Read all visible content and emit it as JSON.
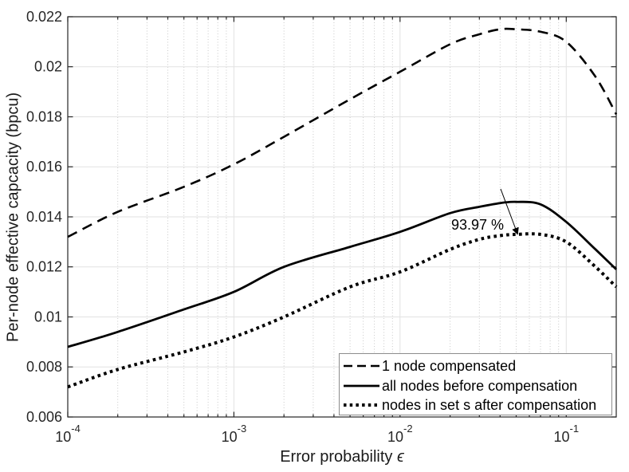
{
  "colors": {
    "curve": "#000000",
    "axis": "#262626",
    "grid_major": "#e2e2e2",
    "grid_minor": "#c9c9c9",
    "legend_border": "#8c8c8c",
    "background": "#ffffff",
    "text": "#262626"
  },
  "chart_data": {
    "type": "line",
    "title": "",
    "xlabel": "Error probability ϵ",
    "xlabel_text": "Error probability",
    "xlabel_symbol": "ϵ",
    "ylabel": "Per-node effective capcacity (bpcu)",
    "x_scale": "log",
    "xlim": [
      0.0001,
      0.2
    ],
    "ylim": [
      0.006,
      0.022
    ],
    "grid": {
      "major": true,
      "minor": true
    },
    "legend_position": "bottom-right",
    "y_ticks": [
      "0.006",
      "0.008",
      "0.01",
      "0.012",
      "0.014",
      "0.016",
      "0.018",
      "0.02",
      "0.022"
    ],
    "x_ticks": [
      {
        "value": 0.0001,
        "base": "10",
        "exp": "-4"
      },
      {
        "value": 0.001,
        "base": "10",
        "exp": "-3"
      },
      {
        "value": 0.01,
        "base": "10",
        "exp": "-2"
      },
      {
        "value": 0.1,
        "base": "10",
        "exp": "-1"
      }
    ],
    "x": [
      0.0001,
      0.0002,
      0.0005,
      0.001,
      0.002,
      0.005,
      0.01,
      0.02,
      0.03,
      0.04,
      0.05,
      0.07,
      0.1,
      0.15,
      0.2
    ],
    "series": [
      {
        "name": "1 node compensated",
        "style": "dashed",
        "values": [
          0.0132,
          0.0142,
          0.0152,
          0.0161,
          0.0172,
          0.0187,
          0.0198,
          0.0209,
          0.0213,
          0.0215,
          0.0215,
          0.0214,
          0.021,
          0.0196,
          0.0181
        ]
      },
      {
        "name": "all nodes before compensation",
        "style": "solid",
        "values": [
          0.0088,
          0.0094,
          0.0103,
          0.011,
          0.012,
          0.0128,
          0.0134,
          0.01415,
          0.0144,
          0.01455,
          0.0146,
          0.0145,
          0.0138,
          0.0127,
          0.0119
        ]
      },
      {
        "name": "nodes in set s after compensation",
        "style": "dotted",
        "values": [
          0.0072,
          0.0079,
          0.0086,
          0.0092,
          0.01,
          0.0112,
          0.0118,
          0.0127,
          0.0131,
          0.01325,
          0.0133,
          0.0133,
          0.013,
          0.012,
          0.0112
        ]
      }
    ],
    "annotation": {
      "text": "93.97 %",
      "arrow_from": [
        0.0403,
        0.01512
      ],
      "arrow_to": [
        0.0508,
        0.01333
      ]
    }
  }
}
